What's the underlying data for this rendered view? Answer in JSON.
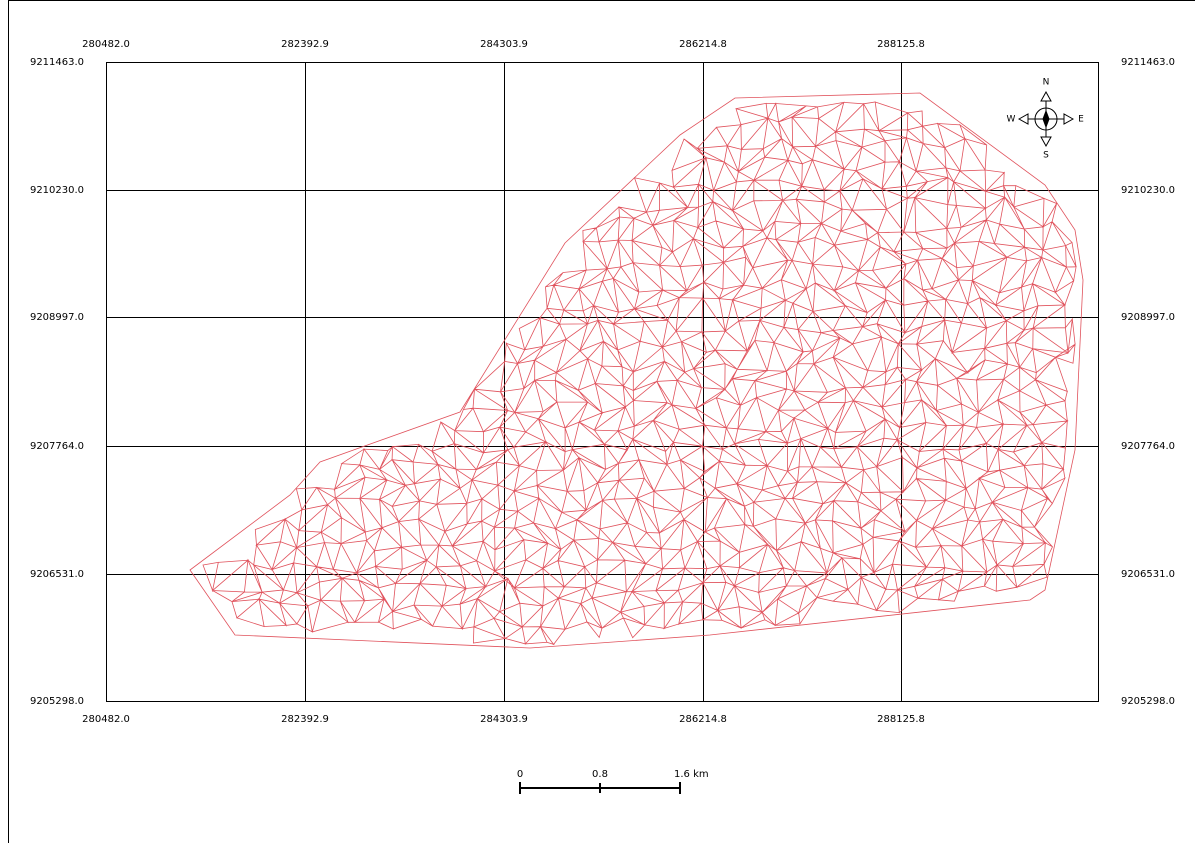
{
  "map": {
    "top_labels": [
      "280482.0",
      "282392.9",
      "284303.9",
      "286214.8",
      "288125.8"
    ],
    "bottom_labels": [
      "280482.0",
      "282392.9",
      "284303.9",
      "286214.8",
      "288125.8"
    ],
    "left_labels": [
      "9211463.0",
      "9210230.0",
      "9208997.0",
      "9207764.0",
      "9206531.0",
      "9205298.0"
    ],
    "right_labels": [
      "9211463.0",
      "9210230.0",
      "9208997.0",
      "9207764.0",
      "9206531.0",
      "9205298.0"
    ],
    "compass": {
      "n": "N",
      "s": "S",
      "e": "E",
      "w": "W"
    },
    "scale_bar": {
      "labels": [
        "0",
        "0.8",
        "1.6 km"
      ]
    }
  }
}
